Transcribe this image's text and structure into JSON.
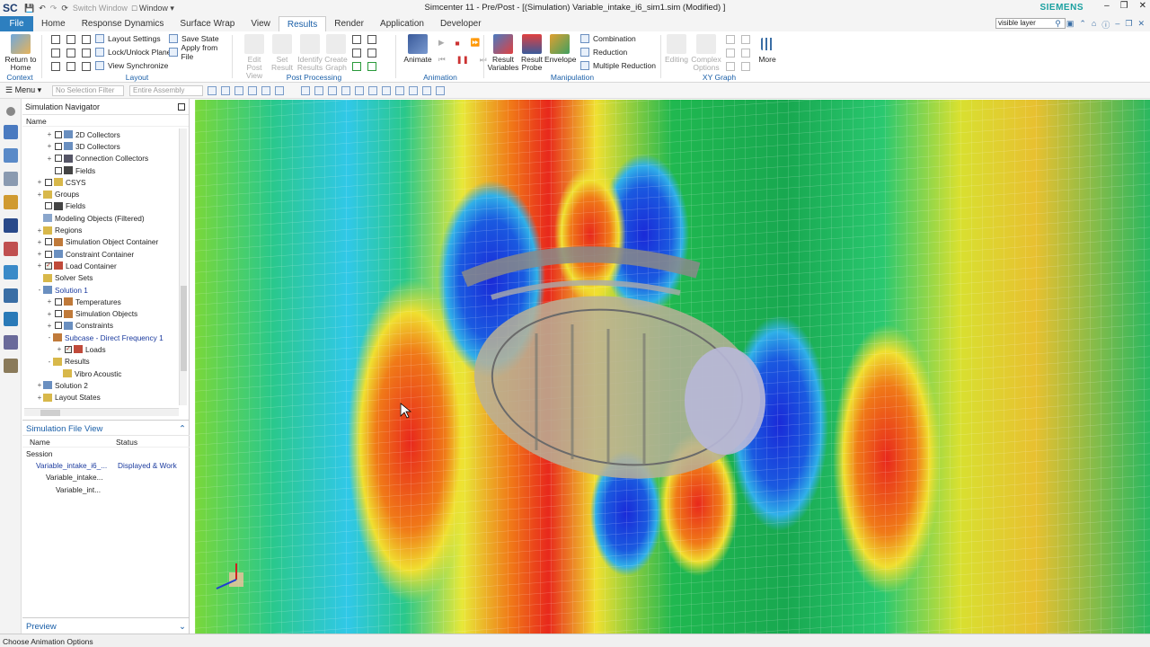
{
  "app": {
    "logo": "SC",
    "window_menu": "Window",
    "switch_window": "Switch Window",
    "title": "Simcenter 11 - Pre/Post - [(Simulation) Variable_intake_i6_sim1.sim (Modified) ]",
    "brand": "SIEMENS"
  },
  "tabs": [
    {
      "label": "File"
    },
    {
      "label": "Home"
    },
    {
      "label": "Response Dynamics"
    },
    {
      "label": "Surface Wrap"
    },
    {
      "label": "View"
    },
    {
      "label": "Results"
    },
    {
      "label": "Render"
    },
    {
      "label": "Application"
    },
    {
      "label": "Developer"
    }
  ],
  "search": {
    "value": "visible layer"
  },
  "ribbon": {
    "context": {
      "return_label": "Return to Home",
      "group": "Context"
    },
    "layout": {
      "settings": "Layout Settings",
      "lock": "Lock/Unlock Plane",
      "sync": "View Synchronize",
      "save": "Save State",
      "apply": "Apply from File",
      "group": "Layout"
    },
    "post": {
      "edit": "Edit Post View",
      "set": "Set Result",
      "identify": "Identify Results",
      "create": "Create Graph",
      "group": "Post Processing"
    },
    "animation": {
      "animate": "Animate",
      "group": "Animation"
    },
    "manipulation": {
      "vars": "Result Variables",
      "probe": "Result Probe",
      "envelope": "Envelope",
      "combination": "Combination",
      "reduction": "Reduction",
      "multiple": "Multiple Reduction",
      "group": "Manipulation"
    },
    "xy": {
      "editing": "Editing",
      "complex": "Complex Options",
      "group": "XY Graph"
    },
    "more": "More"
  },
  "selection": {
    "menu": "Menu",
    "filter": "No Selection Filter",
    "assembly": "Entire Assembly"
  },
  "navigator": {
    "title": "Simulation Navigator",
    "col_name": "Name",
    "items": [
      {
        "label": "2D Collectors",
        "indent": 2,
        "toggle": "+",
        "check": true,
        "checked": false,
        "color": "#6a8fc0"
      },
      {
        "label": "3D Collectors",
        "indent": 2,
        "toggle": "+",
        "check": true,
        "checked": false,
        "color": "#6a8fc0"
      },
      {
        "label": "Connection Collectors",
        "indent": 2,
        "toggle": "+",
        "check": true,
        "checked": false,
        "color": "#556"
      },
      {
        "label": "Fields",
        "indent": 2,
        "toggle": "",
        "check": true,
        "checked": false,
        "color": "#444"
      },
      {
        "label": "CSYS",
        "indent": 1,
        "toggle": "+",
        "check": true,
        "checked": false,
        "color": "#d8b84a"
      },
      {
        "label": "Groups",
        "indent": 1,
        "toggle": "+",
        "check": false,
        "checked": false,
        "color": "#d8b84a"
      },
      {
        "label": "Fields",
        "indent": 1,
        "toggle": "",
        "check": true,
        "checked": false,
        "color": "#444"
      },
      {
        "label": "Modeling Objects (Filtered)",
        "indent": 1,
        "toggle": "",
        "check": false,
        "checked": false,
        "color": "#8aa6cc"
      },
      {
        "label": "Regions",
        "indent": 1,
        "toggle": "+",
        "check": false,
        "checked": false,
        "color": "#d8b84a"
      },
      {
        "label": "Simulation Object Container",
        "indent": 1,
        "toggle": "+",
        "check": true,
        "checked": false,
        "color": "#c07a3a"
      },
      {
        "label": "Constraint Container",
        "indent": 1,
        "toggle": "+",
        "check": true,
        "checked": false,
        "color": "#6a8fc0"
      },
      {
        "label": "Load Container",
        "indent": 1,
        "toggle": "+",
        "check": true,
        "checked": true,
        "color": "#c04a3a"
      },
      {
        "label": "Solver Sets",
        "indent": 1,
        "toggle": "",
        "check": false,
        "checked": false,
        "color": "#d8b84a"
      },
      {
        "label": "Solution 1",
        "indent": 1,
        "toggle": "-",
        "check": false,
        "checked": false,
        "color": "#6a8fc0",
        "hl": true
      },
      {
        "label": "Temperatures",
        "indent": 2,
        "toggle": "+",
        "check": true,
        "checked": false,
        "color": "#c07a3a"
      },
      {
        "label": "Simulation Objects",
        "indent": 2,
        "toggle": "+",
        "check": true,
        "checked": false,
        "color": "#c07a3a"
      },
      {
        "label": "Constraints",
        "indent": 2,
        "toggle": "+",
        "check": true,
        "checked": false,
        "color": "#6a8fc0"
      },
      {
        "label": "Subcase - Direct Frequency 1",
        "indent": 2,
        "toggle": "-",
        "check": false,
        "checked": false,
        "color": "#c07a3a",
        "hl": true
      },
      {
        "label": "Loads",
        "indent": 3,
        "toggle": "+",
        "check": true,
        "checked": true,
        "color": "#c04a3a"
      },
      {
        "label": "Results",
        "indent": 2,
        "toggle": "-",
        "check": false,
        "checked": false,
        "color": "#d8b84a"
      },
      {
        "label": "Vibro Acoustic",
        "indent": 3,
        "toggle": "",
        "check": false,
        "checked": false,
        "color": "#d8b84a"
      },
      {
        "label": "Solution 2",
        "indent": 1,
        "toggle": "+",
        "check": false,
        "checked": false,
        "color": "#6a8fc0"
      },
      {
        "label": "Layout States",
        "indent": 1,
        "toggle": "+",
        "check": false,
        "checked": false,
        "color": "#d8b84a"
      }
    ]
  },
  "file_view": {
    "title": "Simulation File View",
    "col_name": "Name",
    "col_status": "Status",
    "rows": [
      {
        "name": "Session",
        "status": "",
        "indent": 0
      },
      {
        "name": "Variable_intake_i6_...",
        "status": "Displayed & Work",
        "indent": 1
      },
      {
        "name": "Variable_intake...",
        "status": "",
        "indent": 2
      },
      {
        "name": "Variable_int...",
        "status": "",
        "indent": 3
      }
    ]
  },
  "preview": "Preview",
  "status": "Choose Animation Options"
}
